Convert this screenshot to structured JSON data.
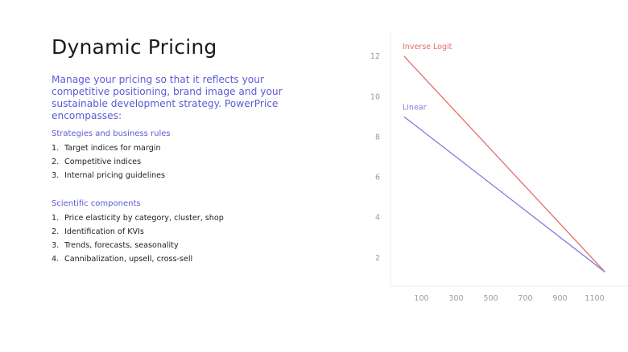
{
  "slide": {
    "title": "Dynamic Pricing",
    "intro": "Manage your pricing so that it reflects your competitive positioning, brand image and your sustainable development strategy. PowerPrice encompasses:",
    "sections": [
      {
        "heading": "Strategies and business rules",
        "items": [
          {
            "num": "1.",
            "text": "Target indices for margin"
          },
          {
            "num": "2.",
            "text": "Competitive indices"
          },
          {
            "num": "3.",
            "text": "Internal pricing guidelines"
          }
        ]
      },
      {
        "heading": "Scientific components",
        "items": [
          {
            "num": "1.",
            "text": "Price elasticity by category, cluster, shop"
          },
          {
            "num": "2.",
            "text": "Identification of KVIs"
          },
          {
            "num": "3.",
            "text": "Trends, forecasts, seasonality"
          },
          {
            "num": "4.",
            "text": "Cannibalization, upsell, cross-sell"
          }
        ]
      }
    ]
  },
  "colors": {
    "accent": "#5b5bd6",
    "inverse_logit": "#e86a6a",
    "linear": "#7e7ee0"
  },
  "chart_data": {
    "type": "line",
    "x_ticks": [
      "100",
      "300",
      "500",
      "700",
      "900",
      "1100"
    ],
    "y_ticks": [
      "2",
      "4",
      "6",
      "8",
      "10",
      "12"
    ],
    "xlim": [
      0,
      1200
    ],
    "ylim": [
      0.6,
      13.2
    ],
    "grid": false,
    "series": [
      {
        "name": "Inverse Logit",
        "x": [
          0,
          1160
        ],
        "y": [
          12,
          1.3
        ]
      },
      {
        "name": "Linear",
        "x": [
          0,
          1160
        ],
        "y": [
          9,
          1.3
        ]
      }
    ]
  }
}
